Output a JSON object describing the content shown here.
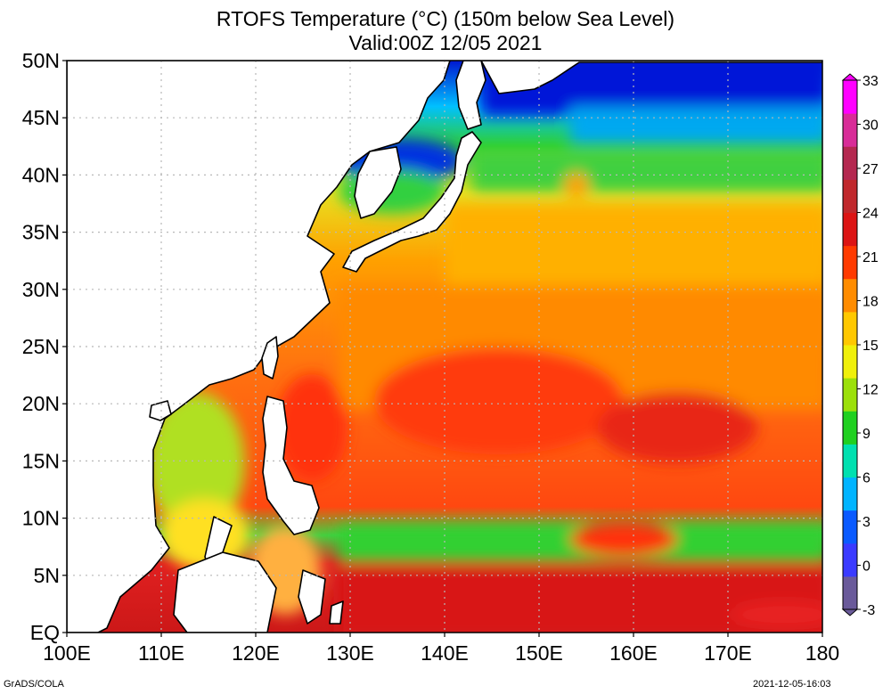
{
  "title_line1": "RTOFS Temperature (°C) (150m below Sea Level)",
  "title_line2": "Valid:00Z 12/05 2021",
  "footer_left": "GrADS/COLA",
  "footer_right": "2021-12-05-16:03",
  "map": {
    "lon_range": [
      100,
      180
    ],
    "lat_range": [
      0,
      50
    ],
    "lon_ticks": [
      "100E",
      "110E",
      "120E",
      "130E",
      "140E",
      "150E",
      "160E",
      "170E",
      "180"
    ],
    "lat_ticks": [
      "EQ",
      "5N",
      "10N",
      "15N",
      "20N",
      "25N",
      "30N",
      "35N",
      "40N",
      "45N",
      "50N"
    ],
    "gridlines": "dotted"
  },
  "colorbar": {
    "labels": [
      "-3",
      "0",
      "3",
      "6",
      "9",
      "12",
      "15",
      "18",
      "21",
      "24",
      "27",
      "30",
      "33"
    ],
    "colors": [
      "#6a5a9a",
      "#3a3aff",
      "#0a5aff",
      "#00b4ff",
      "#00e0b0",
      "#20d020",
      "#9ce00a",
      "#f0f00a",
      "#ffc800",
      "#ff8c00",
      "#ff3a00",
      "#dc1414",
      "#c0282c",
      "#b42850",
      "#d82c98",
      "#ff00ff"
    ]
  }
}
